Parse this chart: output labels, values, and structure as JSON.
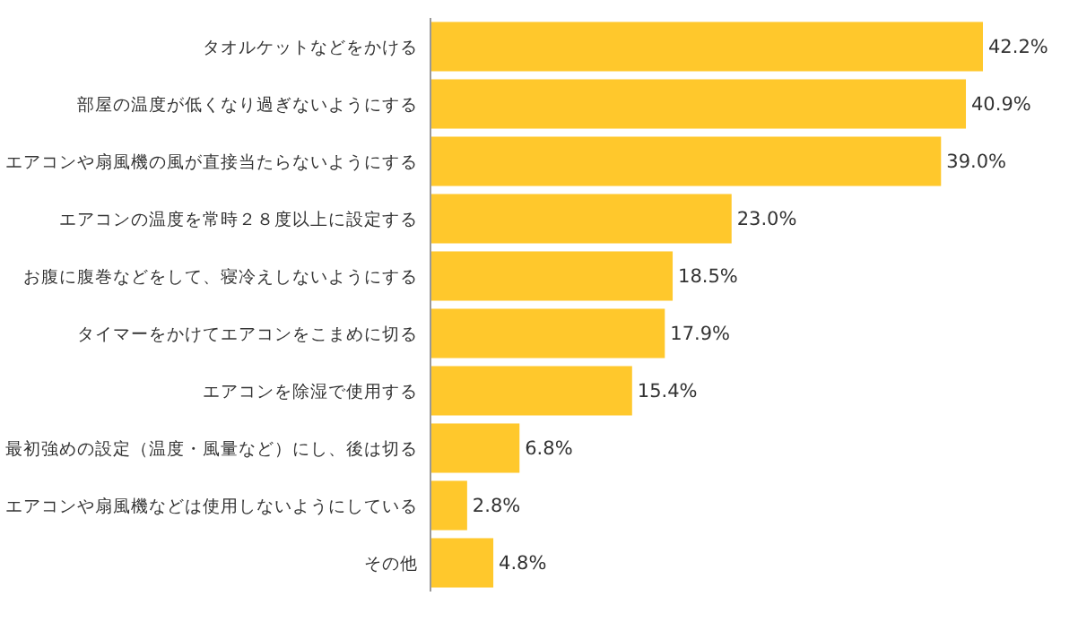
{
  "chart_data": {
    "type": "bar",
    "orientation": "horizontal",
    "categories": [
      "タオルケットなどをかける",
      "部屋の温度が低くなり過ぎないようにする",
      "エアコンや扇風機の風が直接当たらないようにする",
      "エアコンの温度を常時２８度以上に設定する",
      "お腹に腹巻などをして、寝冷えしないようにする",
      "タイマーをかけてエアコンをこまめに切る",
      "エアコンを除湿で使用する",
      "最初強めの設定（温度・風量など）にし、後は切る",
      "エアコンや扇風機などは使用しないようにしている",
      "その他"
    ],
    "values": [
      42.2,
      40.9,
      39.0,
      23.0,
      18.5,
      17.9,
      15.4,
      6.8,
      2.8,
      4.8
    ],
    "value_labels": [
      "42.2%",
      "40.9%",
      "39.0%",
      "23.0%",
      "18.5%",
      "17.9%",
      "15.4%",
      "6.8%",
      "2.8%",
      "4.8%"
    ],
    "color": "#ffc82c",
    "tick_labels": "y"
  }
}
